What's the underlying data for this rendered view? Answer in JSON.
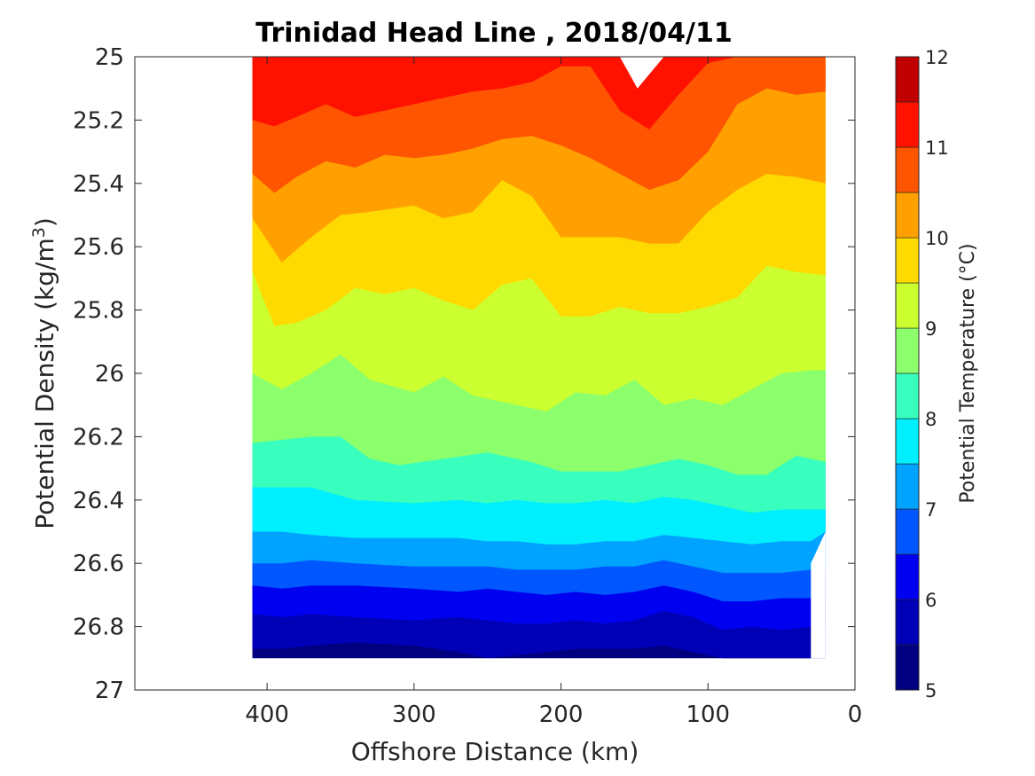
{
  "chart_data": {
    "type": "contour",
    "title": "Trinidad Head Line , 2018/04/11",
    "xlabel": "Offshore Distance (km)",
    "ylabel_prefix": "Potential Density (kg/m",
    "ylabel_sup": "3",
    "ylabel_suffix": ")",
    "xlim": [
      490,
      0
    ],
    "ylim": [
      25,
      27
    ],
    "xticks": [
      400,
      300,
      200,
      100,
      0
    ],
    "yticks": [
      25,
      25.2,
      25.4,
      25.6,
      25.8,
      26,
      26.2,
      26.4,
      26.6,
      26.8,
      27
    ],
    "colorbar": {
      "label": "Potential Temperature (°C)",
      "range": [
        5,
        12
      ],
      "ticks": [
        5,
        6,
        7,
        8,
        9,
        10,
        11,
        12
      ],
      "level_step": 0.5,
      "colors": [
        "#000080",
        "#0000b7",
        "#0000f0",
        "#0057ff",
        "#00a3ff",
        "#00efff",
        "#39ffbe",
        "#8cff6c",
        "#cbff2f",
        "#ffda00",
        "#ffa000",
        "#ff5500",
        "#ff1100",
        "#c00000"
      ]
    },
    "data_extent": {
      "x": [
        410,
        20
      ],
      "density": [
        25,
        26.9
      ]
    },
    "contours": [
      {
        "level": 5.5,
        "x": [
          410,
          390,
          370,
          340,
          300,
          270,
          250,
          230,
          210,
          190,
          170,
          150,
          130,
          110,
          90,
          70,
          50,
          30
        ],
        "density": [
          26.87,
          26.87,
          26.86,
          26.85,
          26.86,
          26.88,
          26.9,
          26.89,
          26.88,
          26.87,
          26.87,
          26.87,
          26.86,
          26.88,
          26.9,
          26.9,
          26.9,
          26.9
        ]
      },
      {
        "level": 6.0,
        "x": [
          410,
          390,
          370,
          340,
          300,
          270,
          250,
          230,
          210,
          190,
          170,
          150,
          130,
          110,
          90,
          70,
          50,
          30
        ],
        "density": [
          26.76,
          26.77,
          26.76,
          26.77,
          26.78,
          26.77,
          26.78,
          26.79,
          26.79,
          26.78,
          26.79,
          26.78,
          26.75,
          26.77,
          26.81,
          26.8,
          26.81,
          26.8
        ]
      },
      {
        "level": 6.5,
        "x": [
          410,
          390,
          370,
          340,
          300,
          270,
          250,
          230,
          210,
          190,
          170,
          150,
          130,
          110,
          90,
          70,
          50,
          30
        ],
        "density": [
          26.67,
          26.68,
          26.67,
          26.67,
          26.68,
          26.69,
          26.68,
          26.69,
          26.7,
          26.69,
          26.7,
          26.69,
          26.67,
          26.69,
          26.72,
          26.72,
          26.71,
          26.71
        ]
      },
      {
        "level": 7.0,
        "x": [
          410,
          390,
          370,
          340,
          300,
          270,
          250,
          230,
          210,
          190,
          170,
          150,
          130,
          110,
          90,
          70,
          50,
          30
        ],
        "density": [
          26.6,
          26.6,
          26.59,
          26.6,
          26.61,
          26.61,
          26.61,
          26.62,
          26.62,
          26.62,
          26.61,
          26.61,
          26.59,
          26.61,
          26.63,
          26.63,
          26.63,
          26.62
        ]
      },
      {
        "level": 7.5,
        "x": [
          410,
          390,
          370,
          340,
          300,
          270,
          250,
          230,
          210,
          190,
          170,
          150,
          130,
          110,
          90,
          70,
          50,
          30,
          20
        ],
        "density": [
          26.5,
          26.5,
          26.51,
          26.52,
          26.52,
          26.52,
          26.53,
          26.53,
          26.54,
          26.54,
          26.53,
          26.53,
          26.51,
          26.52,
          26.53,
          26.54,
          26.53,
          26.53,
          26.5
        ]
      },
      {
        "level": 8.0,
        "x": [
          410,
          390,
          370,
          340,
          300,
          270,
          250,
          230,
          210,
          190,
          170,
          150,
          130,
          110,
          90,
          70,
          50,
          30,
          20
        ],
        "density": [
          26.36,
          26.36,
          26.36,
          26.4,
          26.41,
          26.4,
          26.41,
          26.4,
          26.41,
          26.41,
          26.4,
          26.41,
          26.39,
          26.4,
          26.42,
          26.44,
          26.43,
          26.43,
          26.43
        ]
      },
      {
        "level": 8.5,
        "x": [
          410,
          390,
          370,
          350,
          330,
          310,
          280,
          250,
          220,
          200,
          180,
          160,
          140,
          120,
          100,
          80,
          60,
          40,
          20
        ],
        "density": [
          26.22,
          26.21,
          26.2,
          26.2,
          26.27,
          26.29,
          26.27,
          26.25,
          26.28,
          26.31,
          26.31,
          26.31,
          26.29,
          26.27,
          26.29,
          26.32,
          26.32,
          26.26,
          26.28
        ]
      },
      {
        "level": 9.0,
        "x": [
          410,
          390,
          370,
          350,
          330,
          300,
          280,
          260,
          230,
          210,
          190,
          170,
          150,
          130,
          110,
          90,
          70,
          50,
          30,
          20
        ],
        "density": [
          26.0,
          26.05,
          26.0,
          25.94,
          26.02,
          26.06,
          26.01,
          26.07,
          26.1,
          26.12,
          26.06,
          26.07,
          26.02,
          26.1,
          26.08,
          26.1,
          26.05,
          26.0,
          25.99,
          25.99
        ]
      },
      {
        "level": 9.5,
        "x": [
          410,
          395,
          380,
          360,
          340,
          320,
          300,
          280,
          260,
          240,
          220,
          200,
          180,
          160,
          140,
          120,
          100,
          80,
          60,
          40,
          20
        ],
        "density": [
          25.68,
          25.85,
          25.84,
          25.8,
          25.73,
          25.75,
          25.73,
          25.77,
          25.8,
          25.72,
          25.7,
          25.82,
          25.82,
          25.79,
          25.81,
          25.81,
          25.79,
          25.76,
          25.66,
          25.68,
          25.69
        ]
      },
      {
        "level": 10.0,
        "x": [
          410,
          390,
          370,
          350,
          330,
          300,
          280,
          260,
          240,
          220,
          200,
          180,
          160,
          140,
          120,
          100,
          80,
          60,
          40,
          20
        ],
        "density": [
          25.51,
          25.65,
          25.57,
          25.5,
          25.49,
          25.47,
          25.51,
          25.49,
          25.39,
          25.44,
          25.57,
          25.57,
          25.57,
          25.59,
          25.59,
          25.49,
          25.42,
          25.37,
          25.38,
          25.4
        ]
      },
      {
        "level": 10.5,
        "x": [
          410,
          395,
          380,
          360,
          340,
          320,
          300,
          280,
          260,
          240,
          220,
          200,
          180,
          160,
          140,
          120,
          100,
          80,
          60,
          40,
          20
        ],
        "density": [
          25.37,
          25.43,
          25.38,
          25.33,
          25.35,
          25.31,
          25.32,
          25.31,
          25.29,
          25.26,
          25.25,
          25.28,
          25.32,
          25.37,
          25.42,
          25.39,
          25.3,
          25.15,
          25.1,
          25.12,
          25.11
        ]
      },
      {
        "level": 11.0,
        "x": [
          410,
          395,
          380,
          360,
          340,
          320,
          300,
          280,
          260,
          240,
          220,
          200,
          180,
          160,
          140,
          120,
          100,
          80,
          60,
          40,
          20
        ],
        "density": [
          25.2,
          25.22,
          25.19,
          25.15,
          25.19,
          25.17,
          25.15,
          25.13,
          25.11,
          25.1,
          25.08,
          25.03,
          25.03,
          25.17,
          25.23,
          25.12,
          25.02,
          25.0,
          25.0,
          25.0,
          25.0
        ]
      }
    ],
    "gap_region": {
      "x": [
        160,
        148,
        130
      ],
      "density": [
        25.0,
        25.1,
        25.0
      ]
    }
  }
}
